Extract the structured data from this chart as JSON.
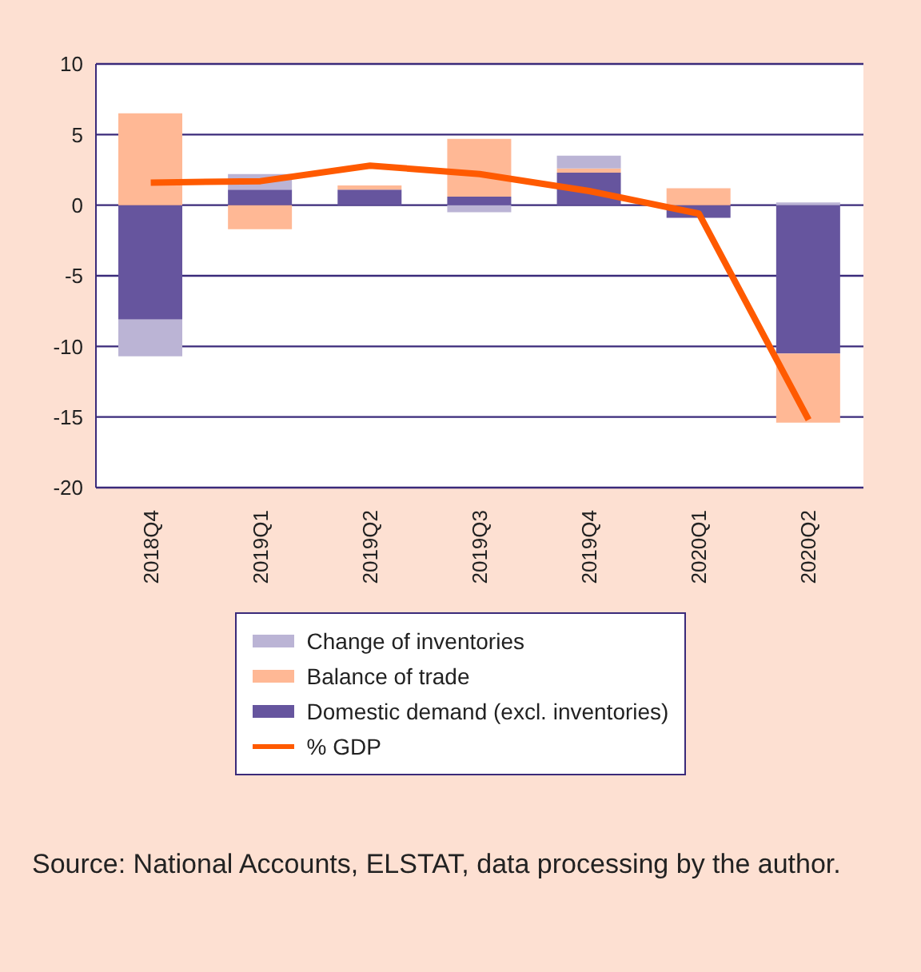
{
  "chart_data": {
    "type": "bar",
    "stacked": true,
    "categories": [
      "2018Q4",
      "2019Q1",
      "2019Q2",
      "2019Q3",
      "2019Q4",
      "2020Q1",
      "2020Q2"
    ],
    "series": [
      {
        "name": "Domestic demand (excl. inventories)",
        "color": "#66559e",
        "values": [
          -8.1,
          1.1,
          1.1,
          0.6,
          2.3,
          -0.9,
          -10.5
        ]
      },
      {
        "name": "Balance of trade",
        "color": "#ffb895",
        "values": [
          6.5,
          -1.7,
          0.3,
          4.1,
          0.3,
          1.2,
          -4.9
        ]
      },
      {
        "name": "Change of inventories",
        "color": "#bbb4d5",
        "values": [
          -2.6,
          1.1,
          null,
          -0.5,
          0.9,
          null,
          0.2
        ]
      },
      {
        "name": "% GDP",
        "type": "line",
        "color": "#ff5a00",
        "values": [
          1.6,
          1.7,
          2.8,
          2.2,
          1.0,
          -0.6,
          -15.2
        ]
      }
    ],
    "ylim": [
      -20,
      10
    ],
    "yticks": [
      -20,
      -15,
      -10,
      -5,
      0,
      5,
      10
    ],
    "grid": "y",
    "legend": "bottom",
    "marker": "none",
    "line_style": "solid",
    "annotations": [
      "Source: National Accounts, ELSTAT, data processing by the author."
    ]
  }
}
